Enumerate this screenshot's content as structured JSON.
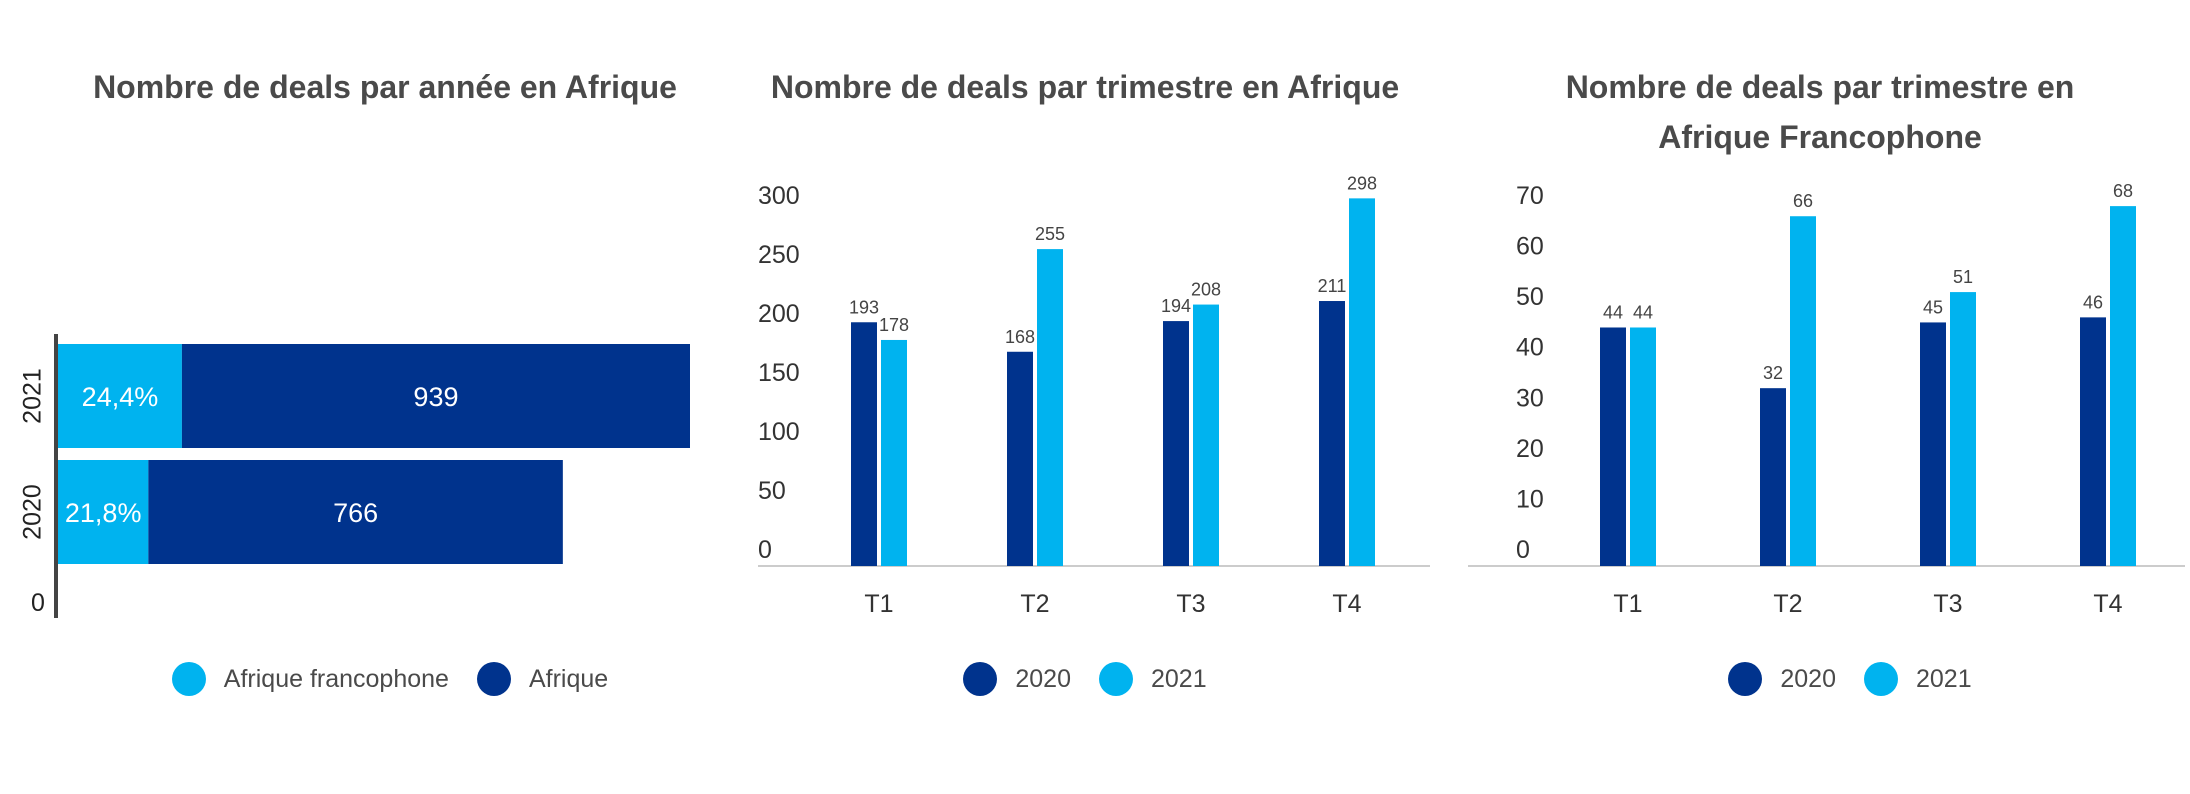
{
  "colors": {
    "dark": "#00338D",
    "light": "#00B3EF",
    "axis": "#cccccc",
    "text": "#4a4a4a"
  },
  "chart_data": [
    {
      "type": "bar",
      "orientation": "horizontal",
      "stacked": true,
      "title": "Nombre de deals par année en Afrique",
      "categories": [
        "2021",
        "2020"
      ],
      "extra_tick": "0",
      "series": [
        {
          "name": "Afrique francophone",
          "color": "#00B3EF",
          "labels": [
            "24,4%",
            "21,8%"
          ],
          "values": [
            229,
            167
          ]
        },
        {
          "name": "Afrique",
          "color": "#00338D",
          "labels": [
            "939",
            "766"
          ],
          "values": [
            939,
            766
          ]
        }
      ],
      "legend": "bottom"
    },
    {
      "type": "bar",
      "title": "Nombre de deals par trimestre en Afrique",
      "categories": [
        "T1",
        "T2",
        "T3",
        "T4"
      ],
      "ylim": [
        0,
        300
      ],
      "yticks": [
        "0",
        "50",
        "100",
        "150",
        "200",
        "250",
        "300"
      ],
      "series": [
        {
          "name": "2020",
          "color": "#00338D",
          "values": [
            193,
            168,
            194,
            211
          ]
        },
        {
          "name": "2021",
          "color": "#00B3EF",
          "values": [
            178,
            255,
            208,
            298
          ]
        }
      ],
      "legend": "bottom"
    },
    {
      "type": "bar",
      "title": "Nombre de deals par trimestre en Afrique Francophone",
      "categories": [
        "T1",
        "T2",
        "T3",
        "T4"
      ],
      "ylim": [
        0,
        70
      ],
      "yticks": [
        "0",
        "10",
        "20",
        "30",
        "40",
        "50",
        "60",
        "70"
      ],
      "series": [
        {
          "name": "2020",
          "color": "#00338D",
          "values": [
            44,
            32,
            45,
            46
          ]
        },
        {
          "name": "2021",
          "color": "#00B3EF",
          "values": [
            44,
            66,
            51,
            68
          ]
        }
      ],
      "legend": "bottom"
    }
  ]
}
